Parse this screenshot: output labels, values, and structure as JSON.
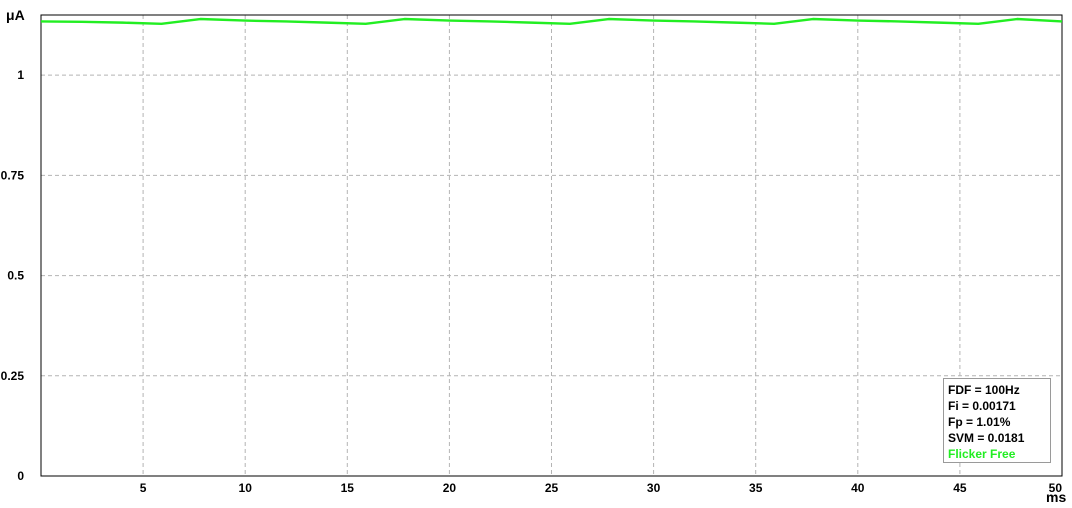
{
  "chart_data": {
    "type": "line",
    "y_unit": "μA",
    "x_unit": "ms",
    "xlim": [
      0,
      50
    ],
    "ylim": [
      0,
      1.15
    ],
    "x_ticks": [
      5,
      10,
      15,
      20,
      25,
      30,
      35,
      40,
      45,
      50
    ],
    "y_ticks": [
      0,
      0.25,
      0.5,
      0.75,
      1
    ],
    "x_tick_labels": [
      "5",
      "10",
      "15",
      "20",
      "25",
      "30",
      "35",
      "40",
      "45",
      "50"
    ],
    "y_tick_labels": [
      "0",
      "0.25",
      "0.5",
      "0.75",
      "1"
    ],
    "grid": true,
    "series": [
      {
        "color": "#22ee22",
        "x": [
          0,
          2,
          4,
          5.9,
          7.8,
          10,
          12,
          14,
          15.9,
          17.8,
          20,
          22,
          24,
          25.9,
          27.8,
          30,
          32,
          34,
          35.9,
          37.8,
          40,
          42,
          44,
          45.9,
          47.8,
          50
        ],
        "y": [
          1.134,
          1.133,
          1.131,
          1.128,
          1.14,
          1.136,
          1.134,
          1.131,
          1.128,
          1.14,
          1.136,
          1.134,
          1.131,
          1.128,
          1.14,
          1.136,
          1.134,
          1.131,
          1.128,
          1.14,
          1.136,
          1.134,
          1.131,
          1.128,
          1.14,
          1.134
        ]
      }
    ]
  },
  "info": {
    "fdf": "FDF = 100Hz",
    "fi": "Fi = 0.00171",
    "fp": "Fp = 1.01%",
    "svm": "SVM = 0.0181",
    "status": "Flicker Free",
    "status_color": "#22ee22"
  }
}
